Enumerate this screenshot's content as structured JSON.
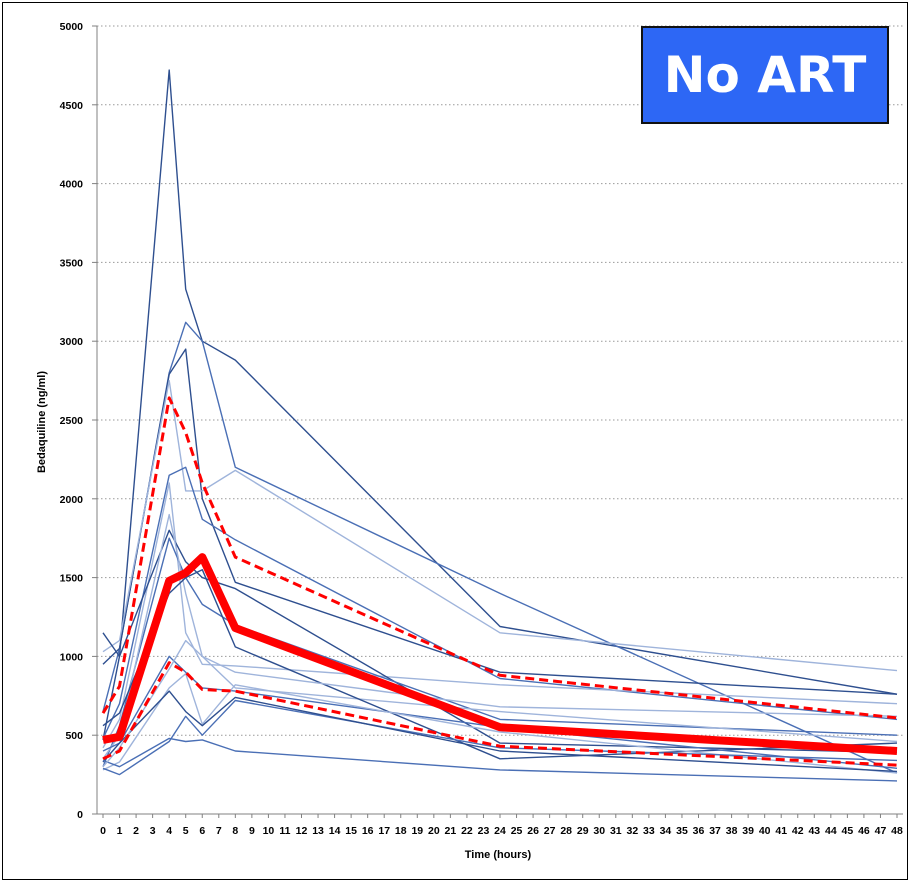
{
  "badge": {
    "label": "No ART",
    "color": "#2d67f5"
  },
  "chart_data": {
    "type": "line",
    "title": "",
    "xlabel": "Time (hours)",
    "ylabel": "Bedaquiline (ng/ml)",
    "ylim": [
      0,
      5000
    ],
    "y_ticks": [
      0,
      500,
      1000,
      1500,
      2000,
      2500,
      3000,
      3500,
      4000,
      4500,
      5000
    ],
    "x_ticks": [
      0,
      1,
      2,
      3,
      4,
      5,
      6,
      7,
      8,
      9,
      10,
      11,
      12,
      13,
      14,
      15,
      16,
      17,
      18,
      19,
      20,
      21,
      22,
      23,
      24,
      25,
      26,
      27,
      28,
      29,
      30,
      31,
      32,
      33,
      34,
      35,
      36,
      37,
      38,
      39,
      40,
      41,
      42,
      43,
      44,
      45,
      46,
      47,
      48
    ],
    "grid": "horizontal dotted",
    "colors": {
      "individual_dark": "#2e4f8f",
      "individual_mid": "#4a6fb5",
      "individual_light": "#9fb4db",
      "median": "#ff0000",
      "quartiles": "#ff0000"
    },
    "x": [
      0,
      1,
      4,
      5,
      6,
      8,
      24,
      48
    ],
    "individual_series": [
      {
        "shade": "dark",
        "values": [
          470,
          1000,
          4720,
          3330,
          3000,
          2880,
          1190,
          760
        ]
      },
      {
        "shade": "mid",
        "values": [
          650,
          1050,
          2800,
          3120,
          3000,
          2200,
          1400,
          260
        ]
      },
      {
        "shade": "dark",
        "values": [
          950,
          1050,
          2790,
          2950,
          2000,
          1470,
          900,
          760
        ]
      },
      {
        "shade": "light",
        "values": [
          1030,
          1100,
          2750,
          2050,
          2050,
          2180,
          1150,
          910
        ]
      },
      {
        "shade": "mid",
        "values": [
          480,
          700,
          2150,
          2200,
          1870,
          1740,
          860,
          600
        ]
      },
      {
        "shade": "light",
        "values": [
          420,
          600,
          2100,
          1150,
          950,
          940,
          820,
          700
        ]
      },
      {
        "shade": "dark",
        "values": [
          1150,
          1000,
          1800,
          1600,
          1500,
          1430,
          450,
          390
        ]
      },
      {
        "shade": "mid",
        "values": [
          300,
          560,
          1750,
          1500,
          1330,
          1200,
          600,
          500
        ]
      },
      {
        "shade": "light",
        "values": [
          350,
          500,
          1900,
          1400,
          1000,
          800,
          650,
          460
        ]
      },
      {
        "shade": "dark",
        "values": [
          560,
          640,
          1400,
          1500,
          1550,
          1060,
          350,
          450
        ]
      },
      {
        "shade": "mid",
        "values": [
          400,
          450,
          1000,
          900,
          800,
          780,
          550,
          290
        ]
      },
      {
        "shade": "light",
        "values": [
          280,
          330,
          800,
          890,
          570,
          820,
          520,
          260
        ]
      },
      {
        "shade": "mid",
        "values": [
          290,
          250,
          460,
          620,
          500,
          720,
          420,
          340
        ]
      },
      {
        "shade": "dark",
        "values": [
          330,
          450,
          780,
          650,
          560,
          740,
          400,
          270
        ]
      },
      {
        "shade": "mid",
        "values": [
          340,
          300,
          480,
          460,
          470,
          400,
          280,
          210
        ]
      },
      {
        "shade": "light",
        "values": [
          300,
          420,
          920,
          1100,
          1000,
          900,
          680,
          620
        ]
      }
    ],
    "series": [
      {
        "style": "solid-thick",
        "values": [
          470,
          490,
          1480,
          1530,
          1630,
          1180,
          550,
          400
        ]
      },
      {
        "style": "dashed",
        "values": [
          640,
          810,
          2640,
          2420,
          2100,
          1630,
          880,
          610
        ]
      },
      {
        "style": "dashed",
        "values": [
          350,
          400,
          960,
          900,
          790,
          780,
          430,
          310
        ]
      }
    ]
  }
}
